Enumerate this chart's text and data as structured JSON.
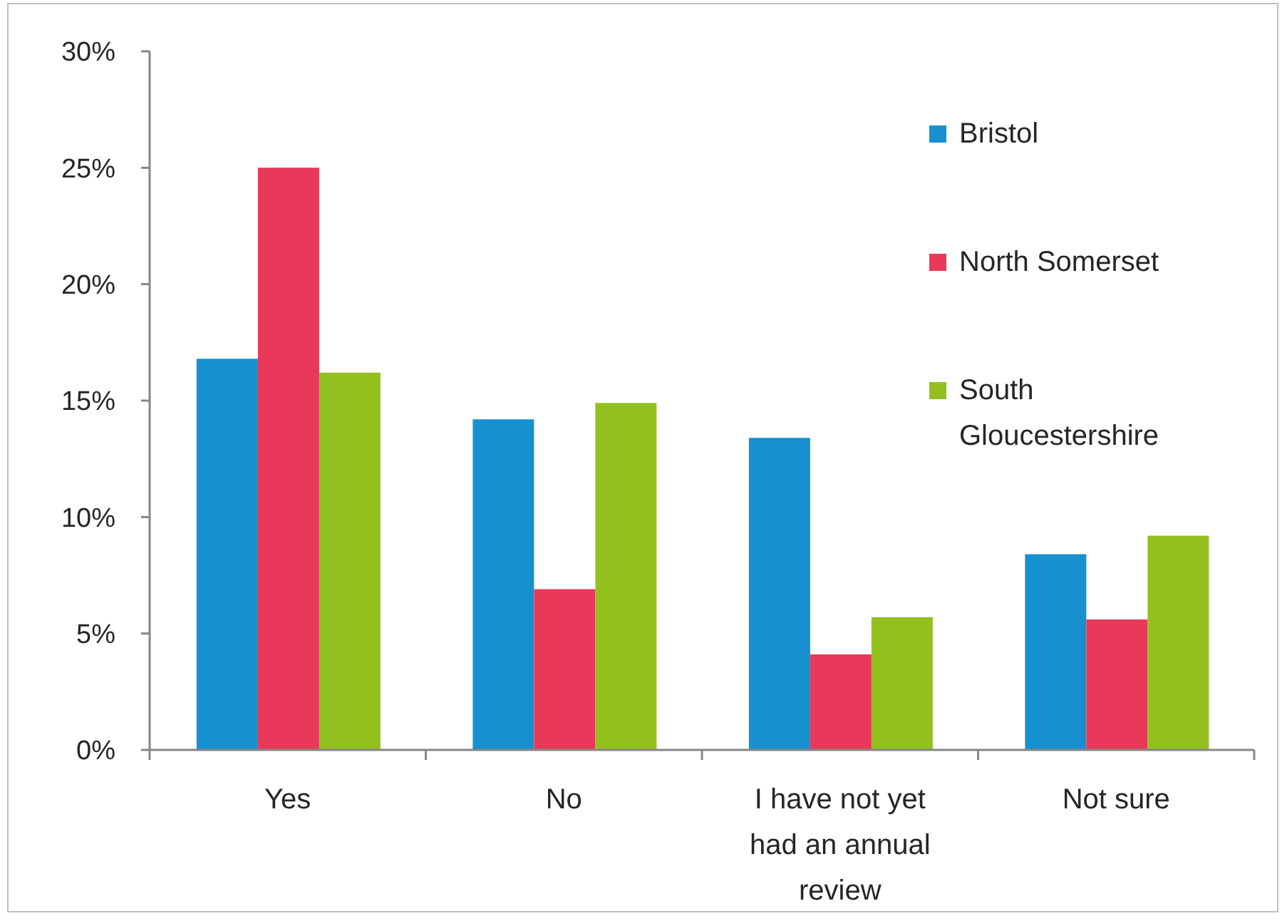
{
  "chart_data": {
    "type": "bar",
    "categories": [
      "Yes",
      "No",
      "I have not yet had an annual review",
      "Not sure"
    ],
    "series": [
      {
        "name": "Bristol",
        "color": "#1790d0",
        "values": [
          16.8,
          14.2,
          13.4,
          8.4
        ]
      },
      {
        "name": "North Somerset",
        "color": "#e8395a",
        "values": [
          25.0,
          6.9,
          4.1,
          5.6
        ]
      },
      {
        "name": "South Gloucestershire",
        "color": "#93c01f",
        "values": [
          16.2,
          14.9,
          5.7,
          9.2
        ]
      }
    ],
    "ylim": [
      0,
      30
    ],
    "yticks": [
      {
        "value": 0,
        "label": "0%"
      },
      {
        "value": 5,
        "label": "5%"
      },
      {
        "value": 10,
        "label": "10%"
      },
      {
        "value": 15,
        "label": "15%"
      },
      {
        "value": 20,
        "label": "20%"
      },
      {
        "value": 25,
        "label": "25%"
      },
      {
        "value": 30,
        "label": "30%"
      }
    ],
    "legend": "top right"
  }
}
